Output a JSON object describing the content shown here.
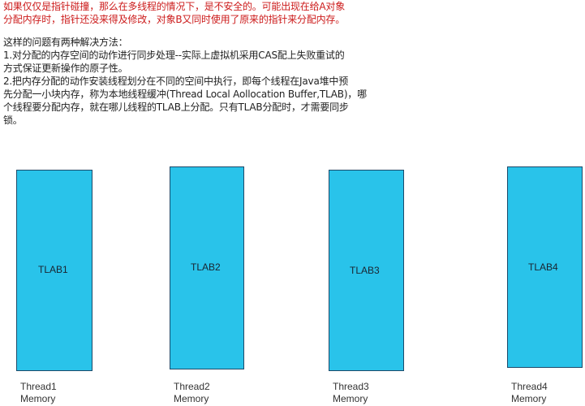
{
  "intro": {
    "lines": [
      "如果仅仅是指针碰撞，那么在多线程的情况下，是不安全的。可能出现在给A对象",
      "分配内存时，指针还没来得及修改，对象B又同时使用了原来的指针来分配内存。"
    ]
  },
  "solutions": {
    "lines": [
      "这样的问题有两种解决方法：",
      "1.对分配的内存空间的动作进行同步处理--实际上虚拟机采用CAS配上失败重试的",
      "方式保证更新操作的原子性。",
      "2.把内存分配的动作安装线程划分在不同的空间中执行，即每个线程在Java堆中预",
      "先分配一小块内存，称为本地线程缓冲(Thread Local Aollocation Buffer,TLAB)，哪",
      "个线程要分配内存，就在哪儿线程的TLAB上分配。只有TLAB分配时，才需要同步",
      "锁。"
    ]
  },
  "diagram": {
    "box_color": "#29c3ea",
    "border_color": "#1d4a6a",
    "buffers": [
      {
        "label": "TLAB1",
        "thread": "Thread1",
        "memory": "Memory"
      },
      {
        "label": "TLAB2",
        "thread": "Thread2",
        "memory": "Memory"
      },
      {
        "label": "TLAB3",
        "thread": "Thread3",
        "memory": "Memory"
      },
      {
        "label": "TLAB4",
        "thread": "Thread4",
        "memory": "Memory"
      }
    ]
  }
}
